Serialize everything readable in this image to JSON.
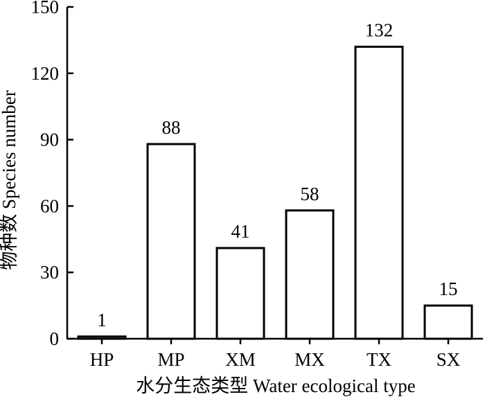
{
  "chart_data": {
    "type": "bar",
    "categories": [
      "HP",
      "MP",
      "XM",
      "MX",
      "TX",
      "SX"
    ],
    "values": [
      1,
      88,
      41,
      58,
      132,
      15
    ],
    "data_labels": [
      "1",
      "88",
      "41",
      "58",
      "132",
      "15"
    ],
    "xlabel": "水分生态类型 Water ecological type",
    "ylabel": "物种数 Species number",
    "ylim": [
      0,
      150
    ],
    "yticks": [
      0,
      30,
      60,
      90,
      120,
      150
    ],
    "ytick_labels": [
      "0",
      "30",
      "60",
      "90",
      "120",
      "150"
    ],
    "grid": false,
    "legend": "none",
    "bar_fill": "#ffffff",
    "bar_stroke": "#000000"
  }
}
